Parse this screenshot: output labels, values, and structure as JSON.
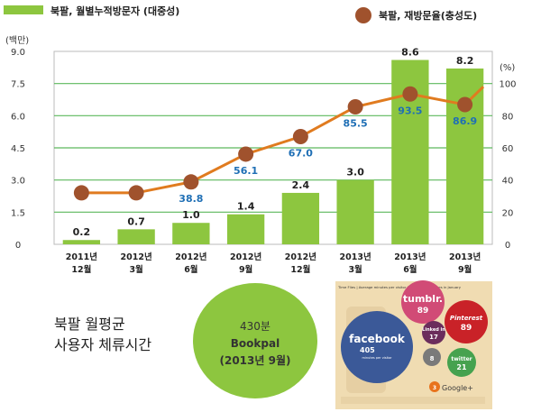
{
  "chart_data": {
    "type": "bar+line",
    "legend": {
      "bar_label": "북팔, 월별누적방문자 (대중성)",
      "line_label": "북팔, 재방문율(충성도)",
      "placement": "top"
    },
    "y_left": {
      "unit_label": "(백만)",
      "ticks": [
        "0",
        "1.5",
        "3.0",
        "4.5",
        "6.0",
        "7.5",
        "9.0"
      ],
      "range": [
        0,
        9.0
      ]
    },
    "y_right": {
      "unit_label": "(%)",
      "ticks": [
        "0",
        "20",
        "40",
        "60",
        "80",
        "100"
      ],
      "range": [
        0,
        120
      ]
    },
    "categories": [
      {
        "line1": "2011년",
        "line2": "12월"
      },
      {
        "line1": "2012년",
        "line2": "3월"
      },
      {
        "line1": "2012년",
        "line2": "6월"
      },
      {
        "line1": "2012년",
        "line2": "9월"
      },
      {
        "line1": "2012년",
        "line2": "12월"
      },
      {
        "line1": "2013년",
        "line2": "3월"
      },
      {
        "line1": "2013년",
        "line2": "6월"
      },
      {
        "line1": "2013년",
        "line2": "9월"
      }
    ],
    "bars": {
      "values": [
        0.2,
        0.7,
        1.0,
        1.4,
        2.4,
        3.0,
        8.6,
        8.2
      ],
      "labels": [
        "0.2",
        "0.7",
        "1.0",
        "1.4",
        "2.4",
        "3.0",
        "8.6",
        "8.2"
      ],
      "color": "#8dc63f"
    },
    "line": {
      "values": [
        32,
        32,
        38.8,
        56.1,
        67.0,
        85.5,
        93.5,
        86.9
      ],
      "labels": [
        "",
        "",
        "38.8",
        "56.1",
        "67.0",
        "85.5",
        "93.5",
        "86.9"
      ],
      "end_value": 98,
      "line_color": "#e07b1f",
      "marker_color": "#a0522d",
      "label_color": "#1f6fb5"
    },
    "grid": true,
    "grid_color": "#5cb85c"
  },
  "footer": {
    "caption_line1": "북팔 월평균",
    "caption_line2": "사용자 체류시간",
    "circle_line1": "430분",
    "circle_line2": "Bookpal",
    "circle_line3": "(2013년 9월)",
    "circle_color": "#8dc63f"
  },
  "infographic": {
    "header": "Time Flies | Average minutes per visitor to social-media sites in January",
    "bubbles": [
      {
        "name": "facebook",
        "value": "405",
        "sub": "minutes per visitor",
        "color": "#3b5998"
      },
      {
        "name": "tumblr.",
        "value": "89",
        "color": "#d14b76"
      },
      {
        "name": "Pinterest",
        "value": "89",
        "color": "#c92228"
      },
      {
        "name": "Linked in",
        "value": "17",
        "color": "#6b2d5c"
      },
      {
        "name": "MySpace",
        "value": "8",
        "color": "#7a7a7a"
      },
      {
        "name": "twitter",
        "value": "21",
        "color": "#46a24f"
      },
      {
        "name": "Google+",
        "value": "3",
        "color": "#e8731d"
      }
    ]
  }
}
